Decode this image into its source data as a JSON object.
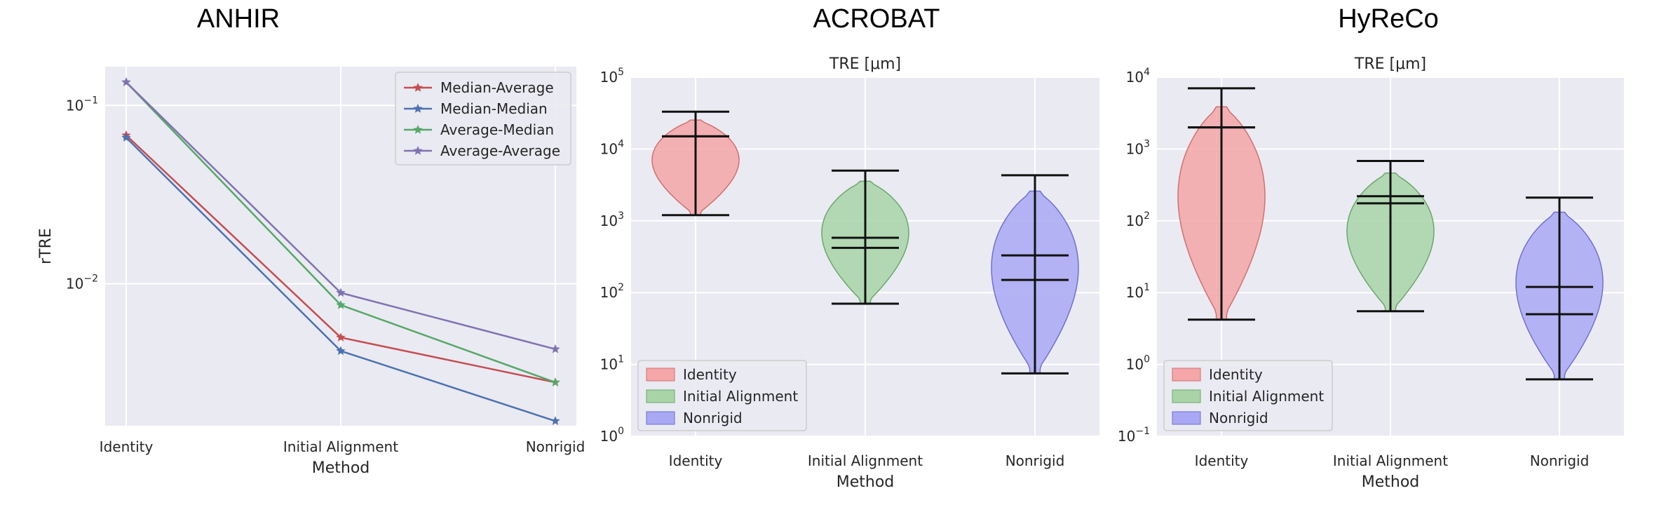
{
  "chart_data": [
    {
      "type": "line",
      "title": "ANHIR",
      "xlabel": "Method",
      "ylabel": "rTRE",
      "yscale": "log",
      "ylim": [
        0.0016,
        0.165
      ],
      "ytick_labels": [
        {
          "value": 0.1,
          "base": "10",
          "exp": "−1"
        },
        {
          "value": 0.01,
          "base": "10",
          "exp": "−2"
        }
      ],
      "categories": [
        "Identity",
        "Initial Alignment",
        "Nonrigid"
      ],
      "grid": true,
      "legend_position": "top-right",
      "series": [
        {
          "name": "Median-Average",
          "color": "#c44e52",
          "values": [
            0.068,
            0.005,
            0.0028
          ]
        },
        {
          "name": "Median-Median",
          "color": "#4c72b0",
          "values": [
            0.066,
            0.0042,
            0.0017
          ]
        },
        {
          "name": "Average-Median",
          "color": "#55a868",
          "values": [
            0.135,
            0.0076,
            0.0028
          ]
        },
        {
          "name": "Average-Average",
          "color": "#8172b2",
          "values": [
            0.135,
            0.0089,
            0.0043
          ]
        }
      ]
    },
    {
      "type": "violin",
      "title": "ACROBAT",
      "subtitle": "TRE [μm]",
      "xlabel": "Method",
      "yscale": "log",
      "ylim": [
        1,
        100000
      ],
      "ytick_labels": [
        {
          "value": 1,
          "base": "10",
          "exp": "0"
        },
        {
          "value": 10,
          "base": "10",
          "exp": "1"
        },
        {
          "value": 100,
          "base": "10",
          "exp": "2"
        },
        {
          "value": 1000,
          "base": "10",
          "exp": "3"
        },
        {
          "value": 10000,
          "base": "10",
          "exp": "4"
        },
        {
          "value": 100000,
          "base": "10",
          "exp": "5"
        }
      ],
      "categories": [
        "Identity",
        "Initial Alignment",
        "Nonrigid"
      ],
      "grid": true,
      "legend_position": "lower-left",
      "legend": [
        "Identity",
        "Initial Alignment",
        "Nonrigid"
      ],
      "colors": [
        "#f4a6a8",
        "#a8d4a8",
        "#a8a8f4"
      ],
      "violins": [
        {
          "category": "Identity",
          "min": 1200,
          "max": 33000,
          "median": 15000,
          "mean": 15000
        },
        {
          "category": "Initial Alignment",
          "min": 70,
          "max": 5000,
          "median": 420,
          "mean": 580
        },
        {
          "category": "Nonrigid",
          "min": 7.5,
          "max": 4300,
          "median": 150,
          "mean": 330
        }
      ]
    },
    {
      "type": "violin",
      "title": "HyReCo",
      "subtitle": "TRE [μm]",
      "xlabel": "Method",
      "yscale": "log",
      "ylim": [
        0.1,
        10000
      ],
      "ytick_labels": [
        {
          "value": 0.1,
          "base": "10",
          "exp": "−1"
        },
        {
          "value": 1,
          "base": "10",
          "exp": "0"
        },
        {
          "value": 10,
          "base": "10",
          "exp": "1"
        },
        {
          "value": 100,
          "base": "10",
          "exp": "2"
        },
        {
          "value": 1000,
          "base": "10",
          "exp": "3"
        },
        {
          "value": 10000,
          "base": "10",
          "exp": "4"
        }
      ],
      "categories": [
        "Identity",
        "Initial Alignment",
        "Nonrigid"
      ],
      "grid": true,
      "legend_position": "lower-left",
      "legend": [
        "Identity",
        "Initial Alignment",
        "Nonrigid"
      ],
      "colors": [
        "#f4a6a8",
        "#a8d4a8",
        "#a8a8f4"
      ],
      "violins": [
        {
          "category": "Identity",
          "min": 4.2,
          "max": 7000,
          "median": 2000,
          "mean": 2000
        },
        {
          "category": "Initial Alignment",
          "min": 5.5,
          "max": 680,
          "median": 175,
          "mean": 220
        },
        {
          "category": "Nonrigid",
          "min": 0.62,
          "max": 210,
          "median": 5,
          "mean": 12
        }
      ]
    }
  ]
}
